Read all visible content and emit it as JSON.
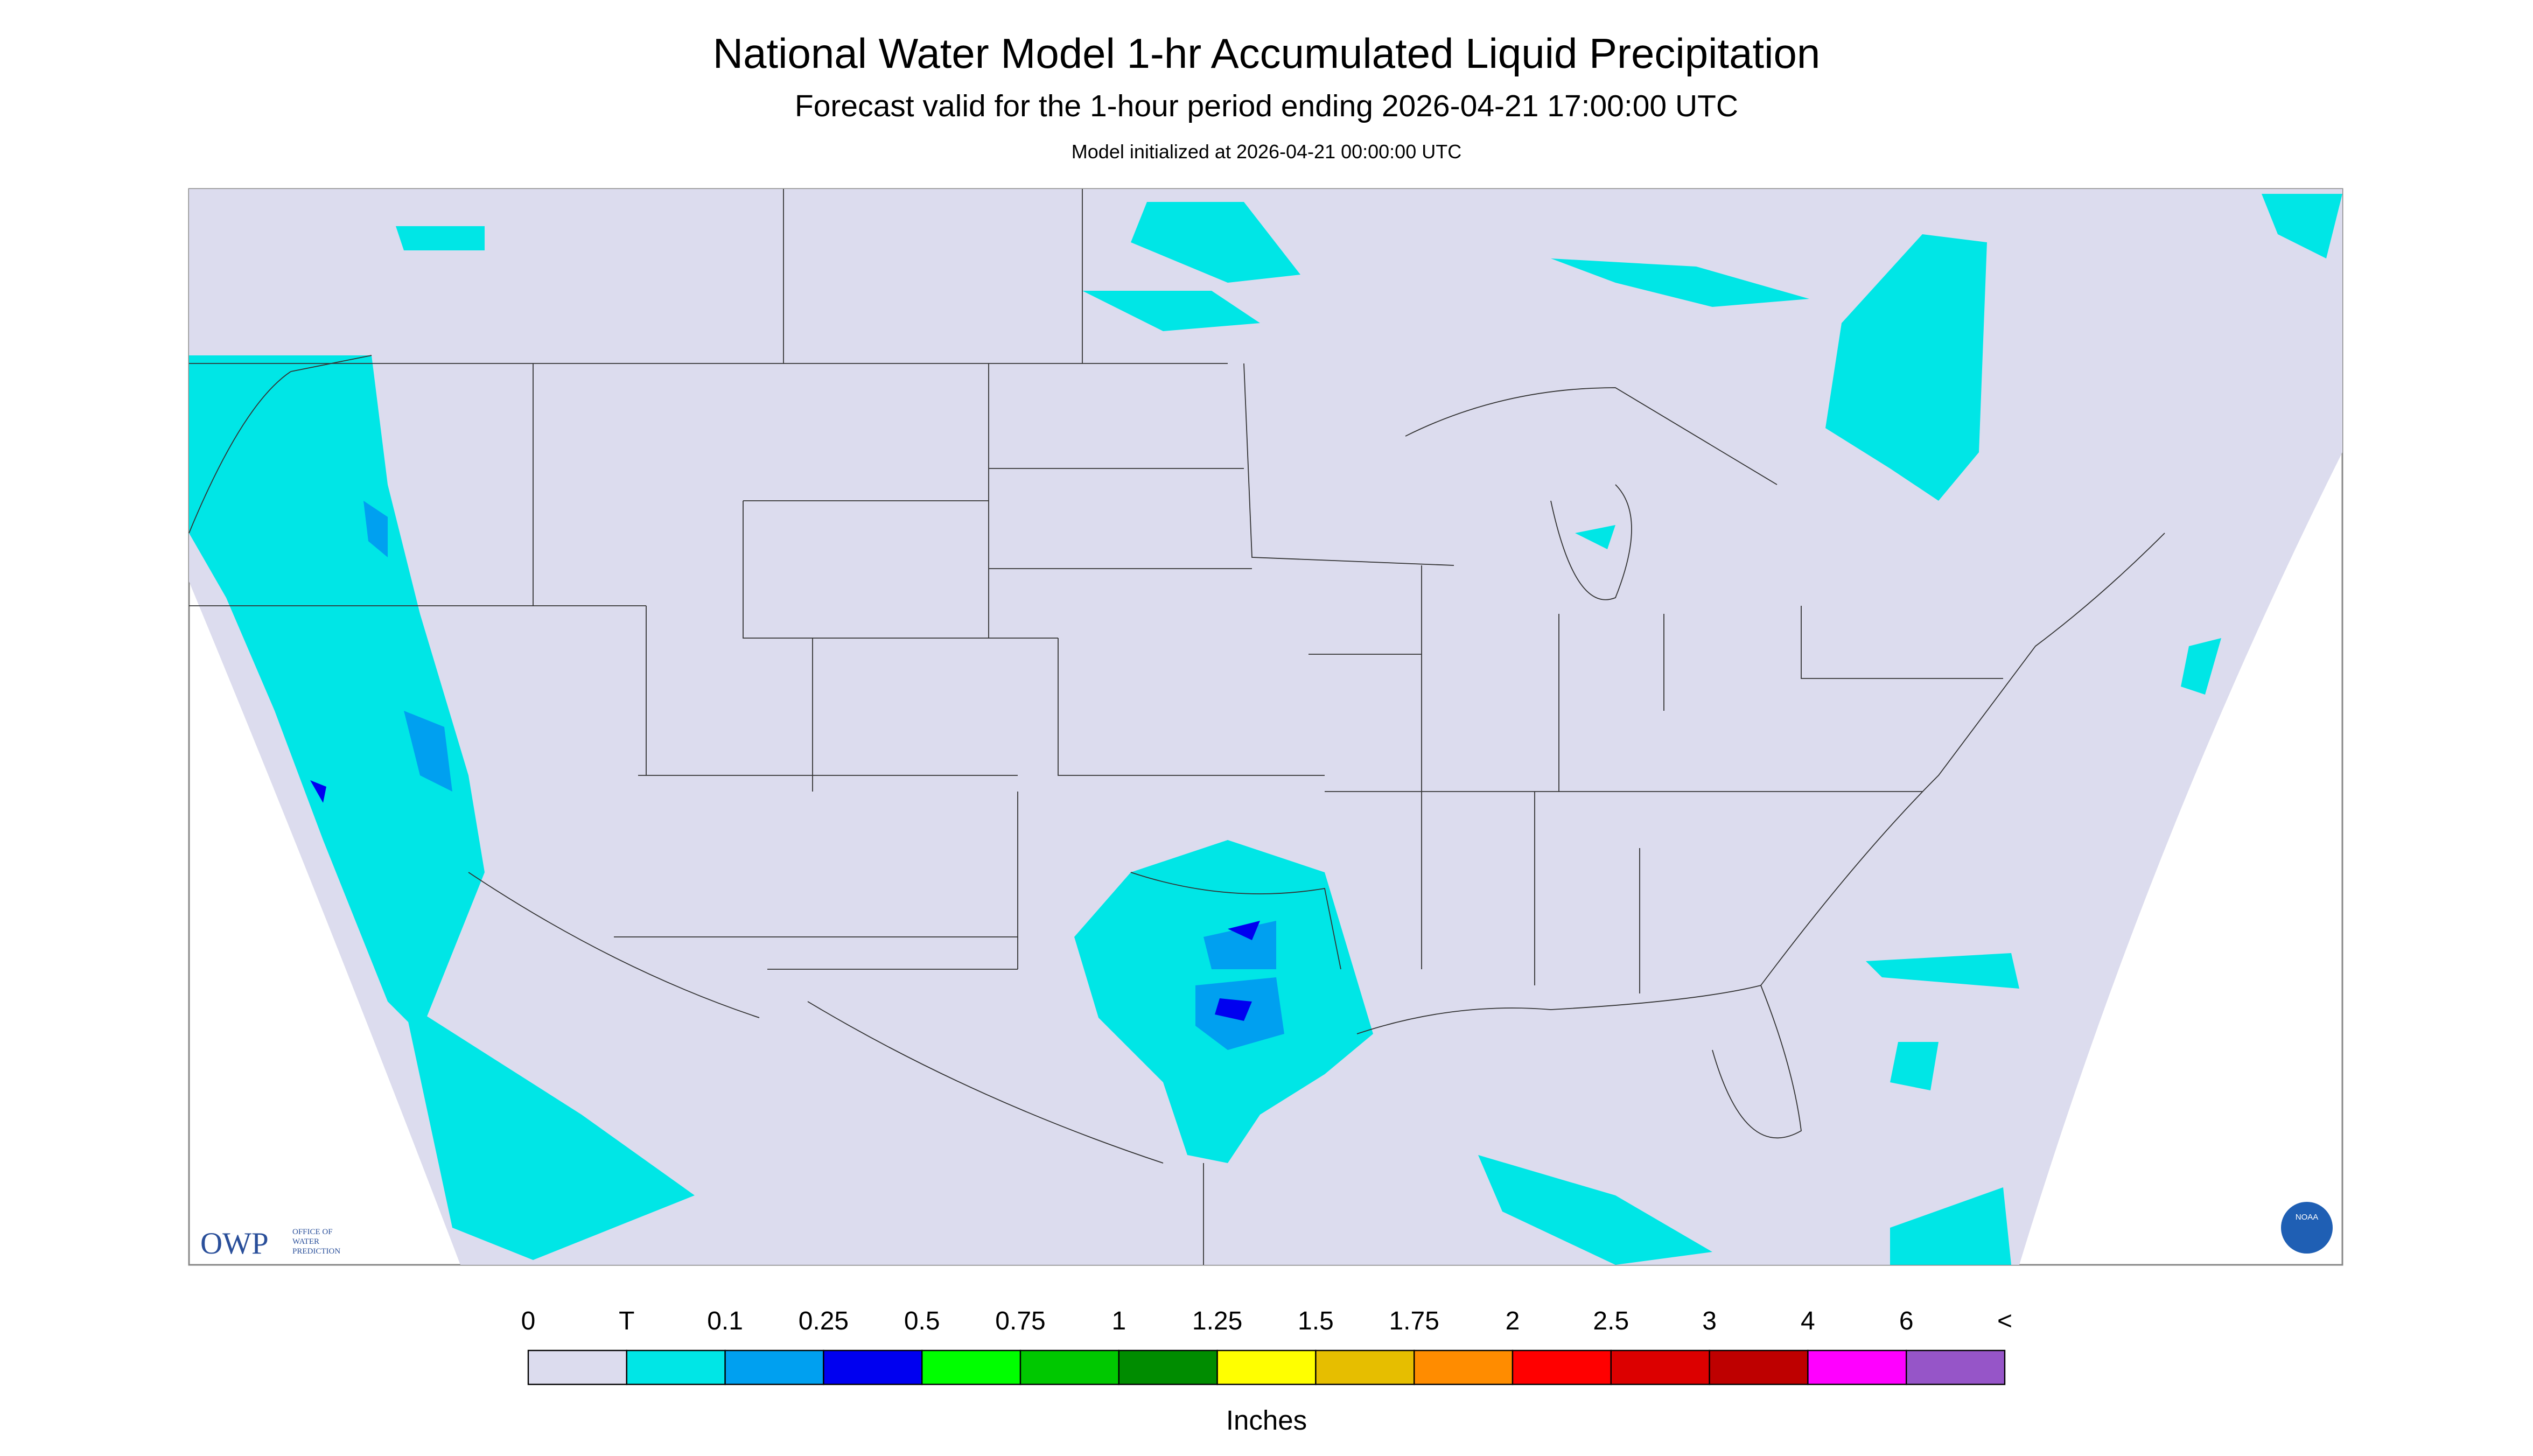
{
  "header": {
    "title": "National Water Model 1-hr Accumulated Liquid Precipitation",
    "subtitle": "Forecast valid for the 1-hour period ending 2026-04-21 17:00:00 UTC",
    "init": "Model initialized at 2026-04-21 00:00:00 UTC"
  },
  "legend": {
    "labels": [
      "0",
      "T",
      "0.1",
      "0.25",
      "0.5",
      "0.75",
      "1",
      "1.25",
      "1.5",
      "1.75",
      "2",
      "2.5",
      "3",
      "4",
      "6",
      "<"
    ],
    "colors": [
      "#dcdcee",
      "#00e6e6",
      "#00a0f0",
      "#0000f0",
      "#00ff00",
      "#00c800",
      "#008c00",
      "#ffff00",
      "#e6be00",
      "#ff8c00",
      "#ff0000",
      "#dc0000",
      "#be0000",
      "#ff00ff",
      "#9655c8"
    ],
    "unit": "Inches"
  },
  "logos": {
    "owp": "OWP",
    "owp_sub": [
      "OFFICE OF",
      "WATER",
      "PREDICTION"
    ],
    "noaa": "NOAA"
  }
}
